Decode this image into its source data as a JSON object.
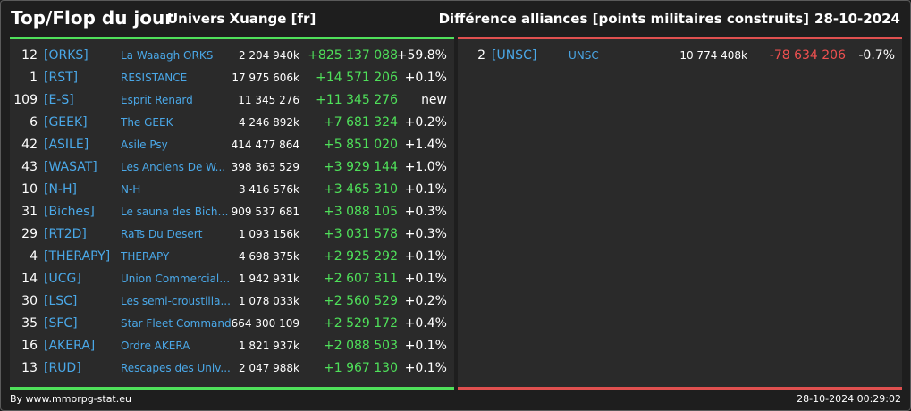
{
  "header": {
    "title": "Top/Flop du jour",
    "subtitle": "Univers Xuange [fr]",
    "right_title": "Différence alliances [points militaires construits]",
    "date": "28-10-2024"
  },
  "colors": {
    "positive": "#4fe05a",
    "negative": "#ef5050",
    "link": "#4aa8e8"
  },
  "top": [
    {
      "rank": "12",
      "tag": "[ORKS]",
      "name": "La Waaagh ORKS",
      "points": "2 204 940k",
      "diff": "+825 137 088",
      "pct": "+59.8%"
    },
    {
      "rank": "1",
      "tag": "[RST]",
      "name": "RESISTANCE",
      "points": "17 975 606k",
      "diff": "+14 571 206",
      "pct": "+0.1%"
    },
    {
      "rank": "109",
      "tag": "[E-S]",
      "name": "Esprit Renard",
      "points": "11 345 276",
      "diff": "+11 345 276",
      "pct": "new"
    },
    {
      "rank": "6",
      "tag": "[GEEK]",
      "name": "The GEEK",
      "points": "4 246 892k",
      "diff": "+7 681 324",
      "pct": "+0.2%"
    },
    {
      "rank": "42",
      "tag": "[ASILE]",
      "name": "Asile Psy",
      "points": "414 477 864",
      "diff": "+5 851 020",
      "pct": "+1.4%"
    },
    {
      "rank": "43",
      "tag": "[WASAT]",
      "name": "Les Anciens De W...",
      "points": "398 363 529",
      "diff": "+3 929 144",
      "pct": "+1.0%"
    },
    {
      "rank": "10",
      "tag": "[N-H]",
      "name": "N-H",
      "points": "3 416 576k",
      "diff": "+3 465 310",
      "pct": "+0.1%"
    },
    {
      "rank": "31",
      "tag": "[Biches]",
      "name": "Le sauna des Biche...",
      "points": "909 537 681",
      "diff": "+3 088 105",
      "pct": "+0.3%"
    },
    {
      "rank": "29",
      "tag": "[RT2D]",
      "name": "RaTs Du Desert",
      "points": "1 093 156k",
      "diff": "+3 031 578",
      "pct": "+0.3%"
    },
    {
      "rank": "4",
      "tag": "[THERAPY]",
      "name": "THERAPY",
      "points": "4 698 375k",
      "diff": "+2 925 292",
      "pct": "+0.1%"
    },
    {
      "rank": "14",
      "tag": "[UCG]",
      "name": "Union Commerciale...",
      "points": "1 942 931k",
      "diff": "+2 607 311",
      "pct": "+0.1%"
    },
    {
      "rank": "30",
      "tag": "[LSC]",
      "name": "Les semi-croustilla...",
      "points": "1 078 033k",
      "diff": "+2 560 529",
      "pct": "+0.2%"
    },
    {
      "rank": "35",
      "tag": "[SFC]",
      "name": "Star Fleet Command",
      "points": "664 300 109",
      "diff": "+2 529 172",
      "pct": "+0.4%"
    },
    {
      "rank": "16",
      "tag": "[AKERA]",
      "name": "Ordre AKERA",
      "points": "1 821 937k",
      "diff": "+2 088 503",
      "pct": "+0.1%"
    },
    {
      "rank": "13",
      "tag": "[RUD]",
      "name": "Rescapes des Univ...",
      "points": "2 047 988k",
      "diff": "+1 967 130",
      "pct": "+0.1%"
    }
  ],
  "flop": [
    {
      "rank": "2",
      "tag": "[UNSC]",
      "name": "UNSC",
      "points": "10 774 408k",
      "diff": "-78 634 206",
      "pct": "-0.7%"
    }
  ],
  "footer": {
    "left": "By www.mmorpg-stat.eu",
    "right": "28-10-2024 00:29:02"
  }
}
